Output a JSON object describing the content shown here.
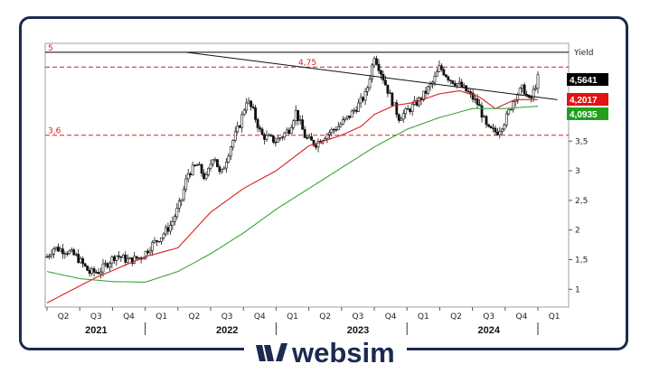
{
  "chart_data": {
    "type": "candlestick-line",
    "ylabel": "Yield",
    "ylim": [
      0.7,
      5.15
    ],
    "y_ticks": [
      "1",
      "1,5",
      "2",
      "2,5",
      "3",
      "3,5"
    ],
    "y_tick_values": [
      1,
      1.5,
      2,
      2.5,
      3,
      3.5
    ],
    "x_quarters": [
      "Q2",
      "Q3",
      "Q4",
      "Q1",
      "Q2",
      "Q3",
      "Q4",
      "Q1",
      "Q2",
      "Q3",
      "Q4",
      "Q1",
      "Q2",
      "Q3",
      "Q4",
      "Q1"
    ],
    "years": [
      "2021",
      "2022",
      "2023",
      "2024"
    ],
    "horizontal_levels": [
      {
        "value": 5,
        "label": "5",
        "color": "#000000",
        "style": "solid"
      },
      {
        "value": 4.75,
        "label": "4,75",
        "color": "#d62020",
        "style": "dashed"
      },
      {
        "value": 3.6,
        "label": "3,6",
        "color": "#d62020",
        "style": "dashed"
      }
    ],
    "trendline": {
      "from": [
        4.25,
        5.0
      ],
      "to": [
        15.6,
        4.2
      ]
    },
    "price_keypoints": [
      [
        0,
        1.55
      ],
      [
        0.2,
        1.7
      ],
      [
        0.6,
        1.65
      ],
      [
        0.9,
        1.55
      ],
      [
        1.3,
        1.28
      ],
      [
        1.6,
        1.3
      ],
      [
        2.1,
        1.58
      ],
      [
        2.5,
        1.48
      ],
      [
        2.9,
        1.55
      ],
      [
        3.2,
        1.75
      ],
      [
        3.5,
        1.9
      ],
      [
        3.8,
        2.1
      ],
      [
        4.1,
        2.5
      ],
      [
        4.3,
        2.95
      ],
      [
        4.6,
        3.1
      ],
      [
        4.85,
        2.85
      ],
      [
        5.1,
        3.3
      ],
      [
        5.3,
        2.9
      ],
      [
        5.6,
        3.4
      ],
      [
        5.9,
        3.8
      ],
      [
        6.1,
        4.2
      ],
      [
        6.3,
        4.0
      ],
      [
        6.55,
        3.6
      ],
      [
        7.0,
        3.5
      ],
      [
        7.4,
        3.7
      ],
      [
        7.6,
        4.0
      ],
      [
        7.9,
        3.55
      ],
      [
        8.2,
        3.45
      ],
      [
        8.5,
        3.6
      ],
      [
        8.9,
        3.75
      ],
      [
        9.2,
        3.9
      ],
      [
        9.5,
        4.1
      ],
      [
        9.75,
        4.3
      ],
      [
        10.0,
        4.95
      ],
      [
        10.25,
        4.6
      ],
      [
        10.45,
        4.3
      ],
      [
        10.75,
        3.9
      ],
      [
        11.0,
        4.0
      ],
      [
        11.4,
        4.2
      ],
      [
        11.8,
        4.5
      ],
      [
        12.0,
        4.75
      ],
      [
        12.3,
        4.55
      ],
      [
        12.6,
        4.45
      ],
      [
        12.9,
        4.3
      ],
      [
        13.2,
        4.1
      ],
      [
        13.45,
        3.7
      ],
      [
        13.75,
        3.65
      ],
      [
        14.0,
        3.85
      ],
      [
        14.3,
        4.25
      ],
      [
        14.55,
        4.4
      ],
      [
        14.75,
        4.15
      ],
      [
        15.0,
        4.56
      ]
    ],
    "ma_red_keypoints": [
      [
        0,
        0.77
      ],
      [
        1.5,
        1.2
      ],
      [
        3.0,
        1.55
      ],
      [
        4.0,
        1.7
      ],
      [
        5.0,
        2.3
      ],
      [
        6.0,
        2.7
      ],
      [
        7.0,
        3.0
      ],
      [
        8.0,
        3.42
      ],
      [
        9.0,
        3.6
      ],
      [
        9.6,
        3.75
      ],
      [
        10.0,
        3.95
      ],
      [
        10.6,
        4.1
      ],
      [
        11.2,
        4.15
      ],
      [
        12.0,
        4.3
      ],
      [
        12.6,
        4.35
      ],
      [
        13.2,
        4.25
      ],
      [
        13.7,
        4.05
      ],
      [
        14.3,
        4.2
      ],
      [
        15.0,
        4.2
      ]
    ],
    "ma_green_keypoints": [
      [
        0,
        1.3
      ],
      [
        1.0,
        1.18
      ],
      [
        2.0,
        1.13
      ],
      [
        3.0,
        1.12
      ],
      [
        4.0,
        1.3
      ],
      [
        5.0,
        1.6
      ],
      [
        6.0,
        1.95
      ],
      [
        7.0,
        2.35
      ],
      [
        8.0,
        2.7
      ],
      [
        9.0,
        3.05
      ],
      [
        10.0,
        3.4
      ],
      [
        11.0,
        3.7
      ],
      [
        12.0,
        3.9
      ],
      [
        13.0,
        4.05
      ],
      [
        14.0,
        4.05
      ],
      [
        15.0,
        4.09
      ]
    ],
    "value_tags": [
      {
        "value": "4,5641",
        "color": "#000000",
        "y": 4.5641
      },
      {
        "value": "4,2017",
        "color": "#e01414",
        "y": 4.2017
      },
      {
        "value": "4,0935",
        "color": "#22a01c",
        "y": 4.0935
      }
    ]
  },
  "brand": {
    "name": "websim",
    "color": "#1b2a4e"
  },
  "colors": {
    "frame": "#1b2a4e",
    "ma_red": "#d62020",
    "ma_green": "#3aa53a"
  }
}
